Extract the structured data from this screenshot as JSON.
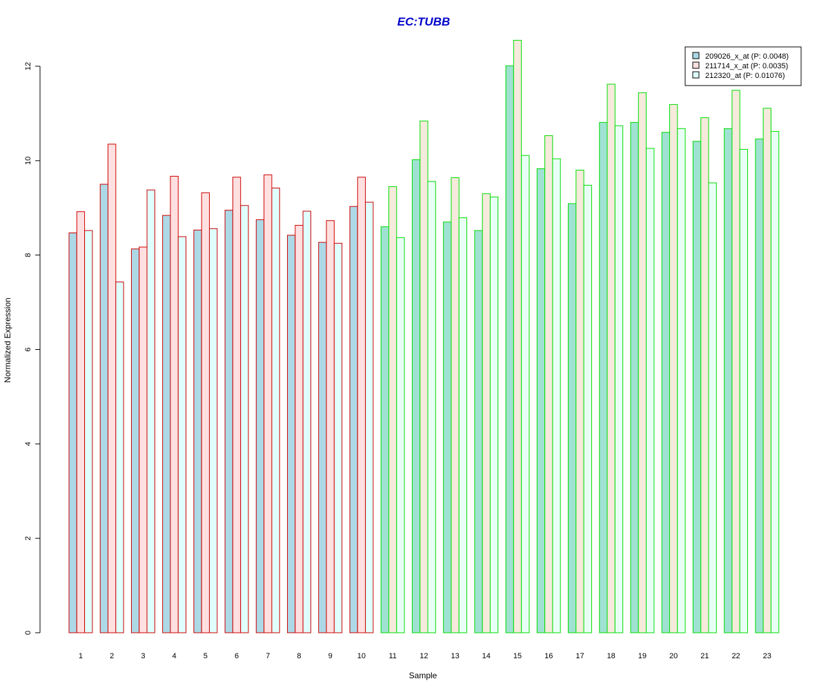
{
  "chart_data": {
    "type": "bar",
    "title": "EC:TUBB",
    "xlabel": "Sample",
    "ylabel": "Normalized Expression",
    "ylim": [
      0,
      12
    ],
    "yticks": [
      "0",
      "2",
      "4",
      "6",
      "8",
      "10",
      "12"
    ],
    "categories": [
      "1",
      "2",
      "3",
      "4",
      "5",
      "6",
      "7",
      "8",
      "9",
      "10",
      "11",
      "12",
      "13",
      "14",
      "15",
      "16",
      "17",
      "18",
      "19",
      "20",
      "21",
      "22",
      "23"
    ],
    "group_border_colors": [
      "#cc0000",
      "#cc0000",
      "#cc0000",
      "#cc0000",
      "#cc0000",
      "#cc0000",
      "#cc0000",
      "#cc0000",
      "#cc0000",
      "#cc0000",
      "#00dd00",
      "#00dd00",
      "#00dd00",
      "#00dd00",
      "#00dd00",
      "#00dd00",
      "#00dd00",
      "#00dd00",
      "#00dd00",
      "#00dd00",
      "#00dd00",
      "#00dd00",
      "#00dd00"
    ],
    "legend_position": "top-right",
    "grid": false,
    "series": [
      {
        "name": "209026_x_at (P: 0.0048)",
        "fill_group1": "#add8e6",
        "fill_group2": "#9fe2d2",
        "values": [
          8.47,
          9.5,
          8.13,
          8.84,
          8.53,
          8.95,
          8.75,
          8.42,
          8.27,
          9.03,
          8.6,
          10.02,
          8.7,
          8.52,
          12.01,
          9.83,
          9.09,
          10.81,
          10.81,
          10.6,
          10.41,
          10.68,
          10.46
        ]
      },
      {
        "name": "211714_x_at (P: 0.0035)",
        "fill_group1": "#ffe0e0",
        "fill_group2": "#f5eadb",
        "values": [
          8.92,
          10.35,
          8.17,
          9.67,
          9.32,
          9.65,
          9.7,
          8.63,
          8.73,
          9.65,
          9.45,
          10.84,
          9.64,
          9.3,
          12.55,
          10.53,
          9.8,
          11.62,
          11.44,
          11.19,
          10.91,
          11.49,
          11.11
        ]
      },
      {
        "name": "212320_at (P: 0.01076)",
        "fill_group1": "#e0ffff",
        "fill_group2": "#e8fff6",
        "values": [
          8.52,
          7.43,
          9.38,
          8.39,
          8.56,
          9.05,
          9.42,
          8.93,
          8.25,
          9.12,
          8.37,
          9.56,
          8.79,
          9.23,
          10.11,
          10.04,
          9.48,
          10.74,
          10.26,
          10.68,
          9.53,
          10.24,
          10.62
        ]
      }
    ]
  }
}
